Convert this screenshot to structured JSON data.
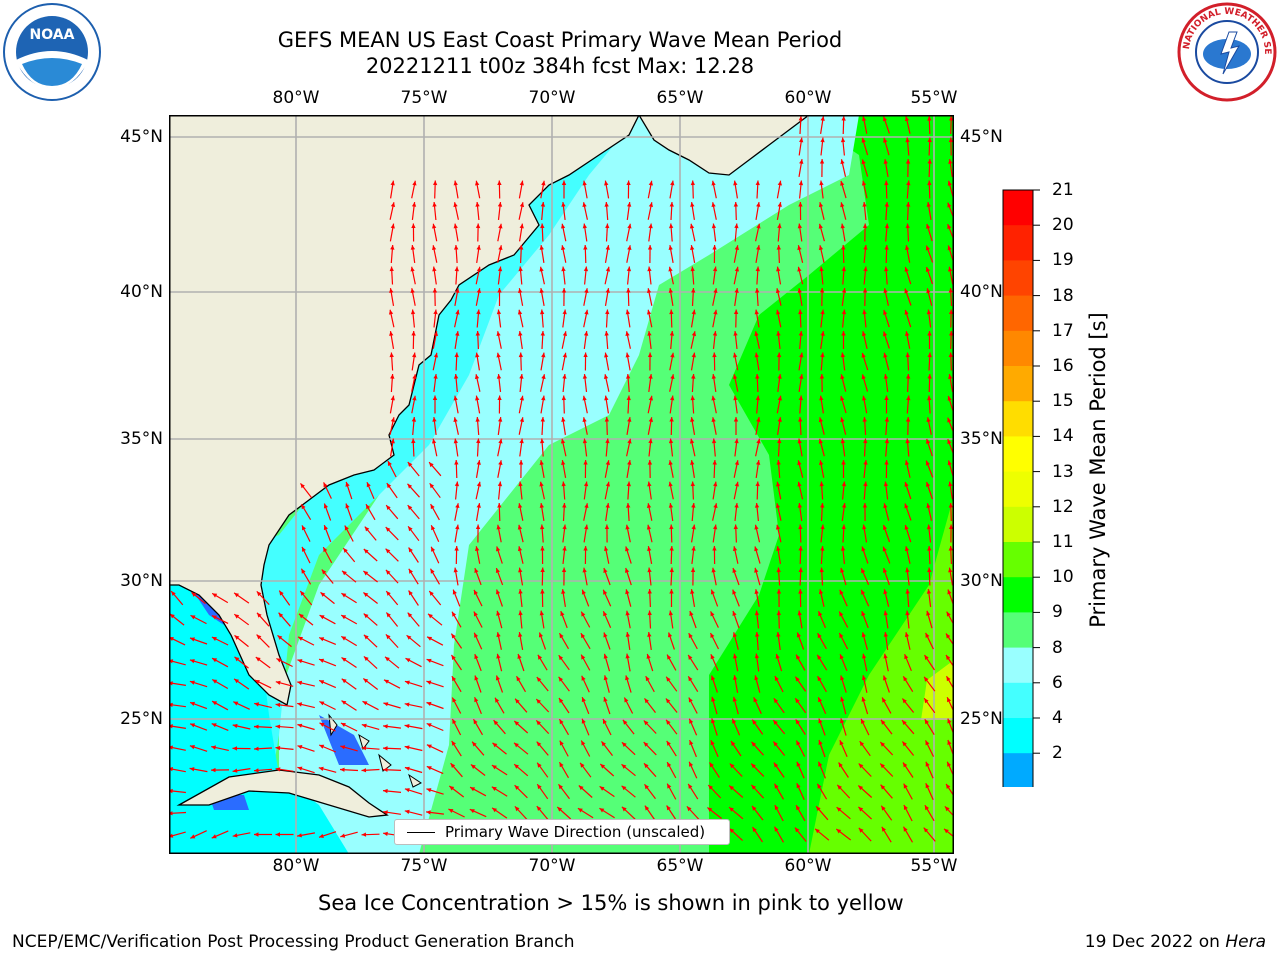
{
  "title": {
    "line1": "GEFS MEAN US East Coast Primary Wave Mean Period",
    "line2": "20221211 t00z 384h fcst   Max: 12.28"
  },
  "map": {
    "lon_labels": [
      "80°W",
      "75°W",
      "70°W",
      "65°W",
      "60°W",
      "55°W"
    ],
    "lat_labels": [
      "45°N",
      "40°N",
      "35°N",
      "30°N",
      "25°N"
    ],
    "extent": {
      "lon_min": -84.9,
      "lon_max": -54.3,
      "lat_min": 20.2,
      "lat_max": 45.8
    },
    "colors": {
      "land": "#efeedc",
      "coast": "#000000",
      "grid": "#b0b0b0",
      "arrow": "#ff0000",
      "frame": "#000000"
    }
  },
  "colorbar": {
    "title": "Primary Wave Mean Period [s]",
    "ticks": [
      "21",
      "20",
      "19",
      "18",
      "17",
      "16",
      "15",
      "14",
      "13",
      "12",
      "11",
      "10",
      "9",
      "8",
      "6",
      "4",
      "2"
    ],
    "colors": [
      "#ff0000",
      "#ff2200",
      "#ff4400",
      "#ff6600",
      "#ff8800",
      "#ffaa00",
      "#ffdd00",
      "#ffff00",
      "#eeff00",
      "#ccff00",
      "#66ff00",
      "#00ff00",
      "#55ff77",
      "#99ffff",
      "#44ffff",
      "#00ffff",
      "#00aaff",
      "#0055ff",
      "#0000ff"
    ]
  },
  "legend": {
    "label": "Primary Wave Direction (unscaled)"
  },
  "note": "Sea Ice Concentration > 15% is shown in pink to yellow",
  "footer": {
    "left": "NCEP/EMC/Verification Post Processing Product Generation Branch",
    "date": "19 Dec 2022 on ",
    "machine": "Hera"
  },
  "logos": {
    "left": "NOAA",
    "right": "NATIONAL WEATHER SERVICE"
  }
}
